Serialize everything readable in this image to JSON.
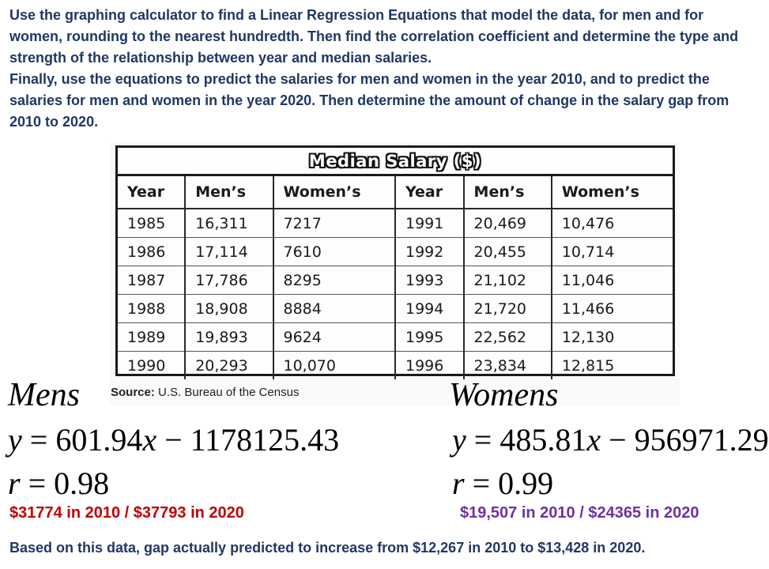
{
  "instructions": {
    "paragraph1": "Use the graphing calculator to find a Linear Regression Equations that model the data, for men and for women, rounding to the nearest hundredth.  Then find the correlation coefficient and determine the type and strength of the relationship between year and median salaries.",
    "paragraph2": "Finally, use the equations to predict the salaries for men and women in the year 2010, and to predict the salaries for men and women in the year 2020.  Then determine the amount of change in the salary gap from 2010 to 2020."
  },
  "table": {
    "title": "Median Salary ($)",
    "headers": [
      "Year",
      "Men’s",
      "Women’s",
      "Year",
      "Men’s",
      "Women’s"
    ],
    "rows": [
      [
        "1985",
        "16,311",
        "7217",
        "1991",
        "20,469",
        "10,476"
      ],
      [
        "1986",
        "17,114",
        "7610",
        "1992",
        "20,455",
        "10,714"
      ],
      [
        "1987",
        "17,786",
        "8295",
        "1993",
        "21,102",
        "11,046"
      ],
      [
        "1988",
        "18,908",
        "8884",
        "1994",
        "21,720",
        "11,466"
      ],
      [
        "1989",
        "19,893",
        "9624",
        "1995",
        "22,562",
        "12,130"
      ],
      [
        "1990",
        "20,293",
        "10,070",
        "1996",
        "23,834",
        "12,815"
      ]
    ],
    "source_label": "Source:",
    "source_text": "U.S. Bureau of the Census"
  },
  "mens": {
    "heading": "Mens",
    "eq_lhs": "y",
    "eq_rhs": " = 601.94",
    "eq_var": "x",
    "eq_const": " − 1178125.43",
    "r_label": "r",
    "r_value": " = 0.98",
    "prediction": "$31774 in 2010 / $37793 in 2020"
  },
  "womens": {
    "heading": "Womens",
    "eq_lhs": "y",
    "eq_rhs": " = 485.81",
    "eq_var": "x",
    "eq_const": " − 956971.29",
    "r_label": "r",
    "r_value": " = 0.99",
    "prediction": "$19,507 in 2010 / $24365 in 2020"
  },
  "conclusion": "Based on this data, gap actually predicted to increase from $12,267 in 2010 to $13,428 in 2020.",
  "colors": {
    "instructions": "#1f3864",
    "men_prediction": "#c00000",
    "women_prediction": "#7030a0"
  }
}
